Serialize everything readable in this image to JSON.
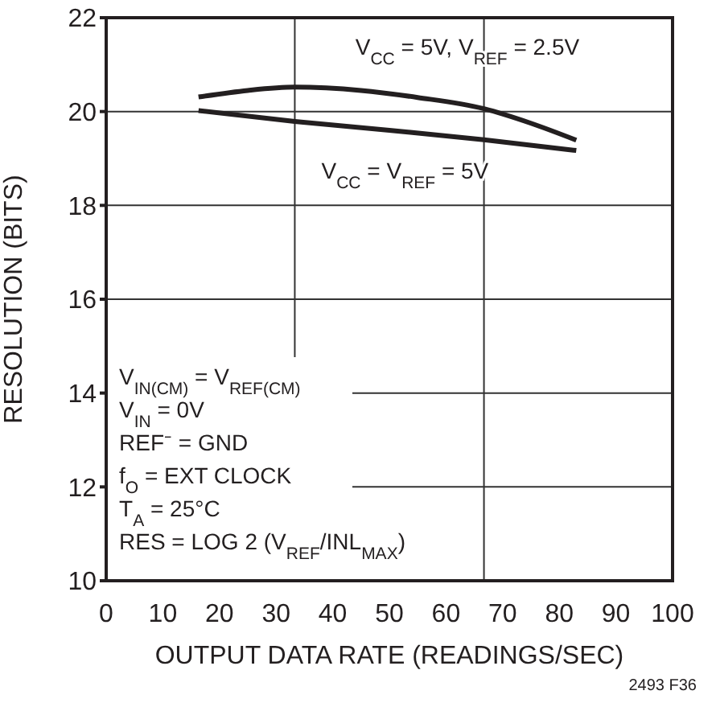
{
  "chart_data": {
    "type": "line",
    "xlabel": "OUTPUT DATA RATE (READINGS/SEC)",
    "ylabel": "RESOLUTION (BITS)",
    "xlim": [
      0,
      100
    ],
    "xticks": [
      0,
      10,
      20,
      30,
      40,
      50,
      60,
      70,
      80,
      90,
      100
    ],
    "ylim": [
      10,
      22
    ],
    "yticks": [
      10,
      12,
      14,
      16,
      18,
      20,
      22
    ],
    "grid": "y",
    "legend": false,
    "marker": "none",
    "line_style": "solid",
    "ref_lines": [
      {
        "axis": "x",
        "value": 33.3,
        "color": "#333333"
      },
      {
        "axis": "x",
        "value": 66.7,
        "color": "#333333"
      }
    ],
    "series": [
      {
        "name": "V$_{CC}$ = 5V, V$_{REF}$ = 2.5V",
        "color": "#231f20",
        "x": [
          16.3,
          25,
          33.3,
          45,
          55,
          66.7,
          75,
          83
        ],
        "values": [
          20.31,
          20.45,
          20.52,
          20.45,
          20.3,
          20.06,
          19.75,
          19.39
        ]
      },
      {
        "name": "V$_{CC}$ = V$_{REF}$ = 5V",
        "color": "#231f20",
        "x": [
          16.3,
          33.3,
          50,
          66.7,
          83
        ],
        "values": [
          20.02,
          19.79,
          19.6,
          19.4,
          19.17
        ]
      }
    ],
    "annotations": [
      "V$_{IN(CM)}$ = V$_{REF(CM)}$",
      "V$_{IN}$ = 0V",
      "REF⁻ = GND",
      "f$_{O}$ = EXT CLOCK",
      "T$_{A}$ = 25°C",
      "RES = LOG 2 (V$_{REF}$/INL$_{MAX}$)",
      "2493 F36"
    ]
  }
}
